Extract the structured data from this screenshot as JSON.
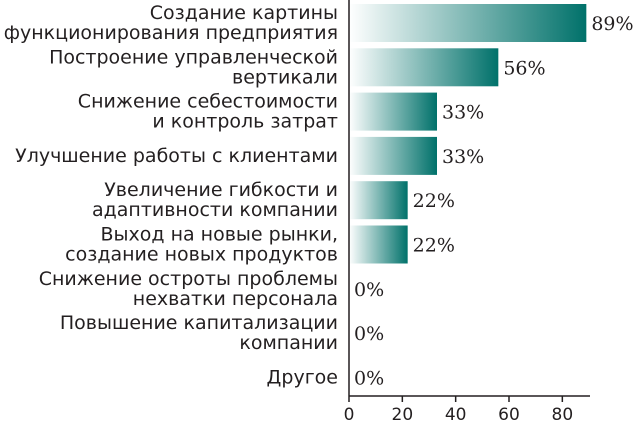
{
  "chart_data": {
    "type": "bar",
    "orientation": "horizontal",
    "categories": [
      [
        "Создание картины",
        "функционирования предприятия"
      ],
      [
        "Построение управленческой",
        "вертикали"
      ],
      [
        "Снижение себестоимости",
        "и контроль затрат"
      ],
      [
        "Улучшение работы с клиентами"
      ],
      [
        "Увеличение гибкости и",
        "адаптивности компании"
      ],
      [
        "Выход на новые рынки,",
        "создание новых продуктов"
      ],
      [
        "Снижение остроты проблемы",
        "нехватки персонала"
      ],
      [
        "Повышение капитализации",
        "компании"
      ],
      [
        "Другое"
      ]
    ],
    "values": [
      89,
      56,
      33,
      33,
      22,
      22,
      0,
      0,
      0
    ],
    "value_labels": [
      "89%",
      "56%",
      "33%",
      "33%",
      "22%",
      "22%",
      "0%",
      "0%",
      "0%"
    ],
    "xlim": [
      0,
      90
    ],
    "xticks": [
      0,
      20,
      40,
      60,
      80
    ],
    "xtick_labels": [
      "0",
      "20",
      "40",
      "60",
      "80"
    ],
    "grid": false,
    "colors": {
      "bar_start": "#ffffff",
      "bar_end": "#00716a",
      "axis": "#231f20",
      "text": "#231f20"
    }
  }
}
